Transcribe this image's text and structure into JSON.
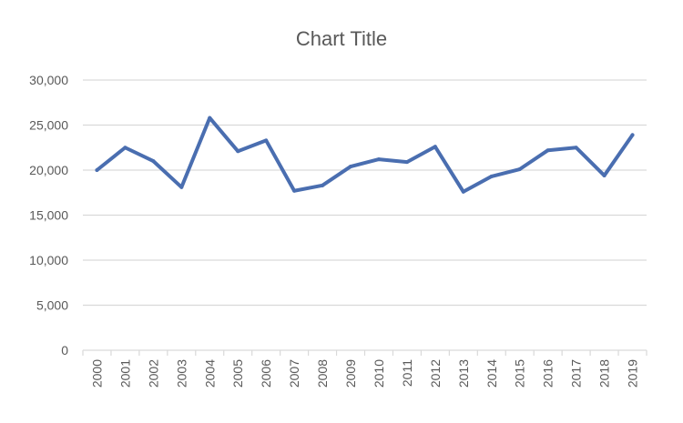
{
  "chart_data": {
    "type": "line",
    "title": "Chart Title",
    "xlabel": "",
    "ylabel": "",
    "categories": [
      "2000",
      "2001",
      "2002",
      "2003",
      "2004",
      "2005",
      "2006",
      "2007",
      "2008",
      "2009",
      "2010",
      "2011",
      "2012",
      "2013",
      "2014",
      "2015",
      "2016",
      "2017",
      "2018",
      "2019"
    ],
    "series": [
      {
        "values": [
          20000,
          22500,
          21000,
          18100,
          25800,
          22100,
          23300,
          17700,
          18300,
          20400,
          21200,
          20900,
          22600,
          17600,
          19300,
          20100,
          22200,
          22500,
          19400,
          23900
        ],
        "color": "#4a6eb0"
      }
    ],
    "ylim": [
      0,
      30000
    ],
    "yticks": [
      "0",
      "5,000",
      "10,000",
      "15,000",
      "20,000",
      "25,000",
      "30,000"
    ],
    "grid": true,
    "legend": "none",
    "gridline_color": "#d9d9d9",
    "axis_color": "#d9d9d9"
  }
}
